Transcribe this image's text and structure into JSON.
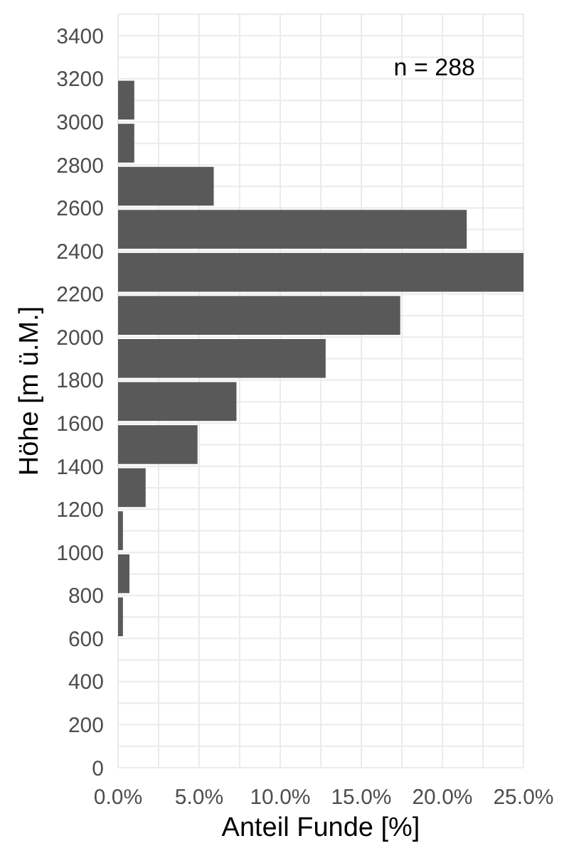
{
  "chart_data": {
    "type": "histogram",
    "orientation": "horizontal",
    "color": "#595959",
    "bins": [
      600,
      800,
      1000,
      1200,
      1400,
      1600,
      1800,
      2000,
      2200,
      2400,
      2600,
      2800,
      3000,
      3200
    ],
    "values": [
      0.3,
      0.7,
      0.3,
      1.7,
      4.9,
      7.3,
      12.8,
      17.4,
      25.0,
      21.5,
      5.9,
      1.0,
      1.0
    ],
    "xlabel": "Anteil Funde [%]",
    "ylabel": "Höhe [m ü.M.]",
    "xlim": [
      0,
      25
    ],
    "xticks": [
      {
        "value": 0,
        "label": "0.0%"
      },
      {
        "value": 2.5,
        "label": null
      },
      {
        "value": 5,
        "label": "5.0%"
      },
      {
        "value": 7.5,
        "label": null
      },
      {
        "value": 10,
        "label": "10.0%"
      },
      {
        "value": 12.5,
        "label": null
      },
      {
        "value": 15,
        "label": "15.0%"
      },
      {
        "value": 17.5,
        "label": null
      },
      {
        "value": 20,
        "label": "20.0%"
      },
      {
        "value": 22.5,
        "label": null
      },
      {
        "value": 25,
        "label": "25.0%"
      }
    ],
    "ylim": [
      0,
      3500
    ],
    "yticks": [
      0,
      {
        "value": 100,
        "label": null
      },
      200,
      {
        "value": 300,
        "label": null
      },
      400,
      {
        "value": 500,
        "label": null
      },
      600,
      {
        "value": 700,
        "label": null
      },
      800,
      {
        "value": 900,
        "label": null
      },
      1000,
      {
        "value": 1100,
        "label": null
      },
      1200,
      {
        "value": 1300,
        "label": null
      },
      1400,
      {
        "value": 1500,
        "label": null
      },
      1600,
      {
        "value": 1700,
        "label": null
      },
      1800,
      {
        "value": 1900,
        "label": null
      },
      2000,
      {
        "value": 2100,
        "label": null
      },
      2200,
      2400,
      {
        "value": 2500,
        "label": null
      },
      2600,
      {
        "value": 2700,
        "label": null
      },
      2800,
      {
        "value": 2900,
        "label": null
      },
      3000,
      {
        "value": 3100,
        "label": null
      },
      3200,
      {
        "value": 3300,
        "label": null
      },
      3400
    ],
    "grid": true,
    "annotations": [
      "n = 288"
    ]
  }
}
